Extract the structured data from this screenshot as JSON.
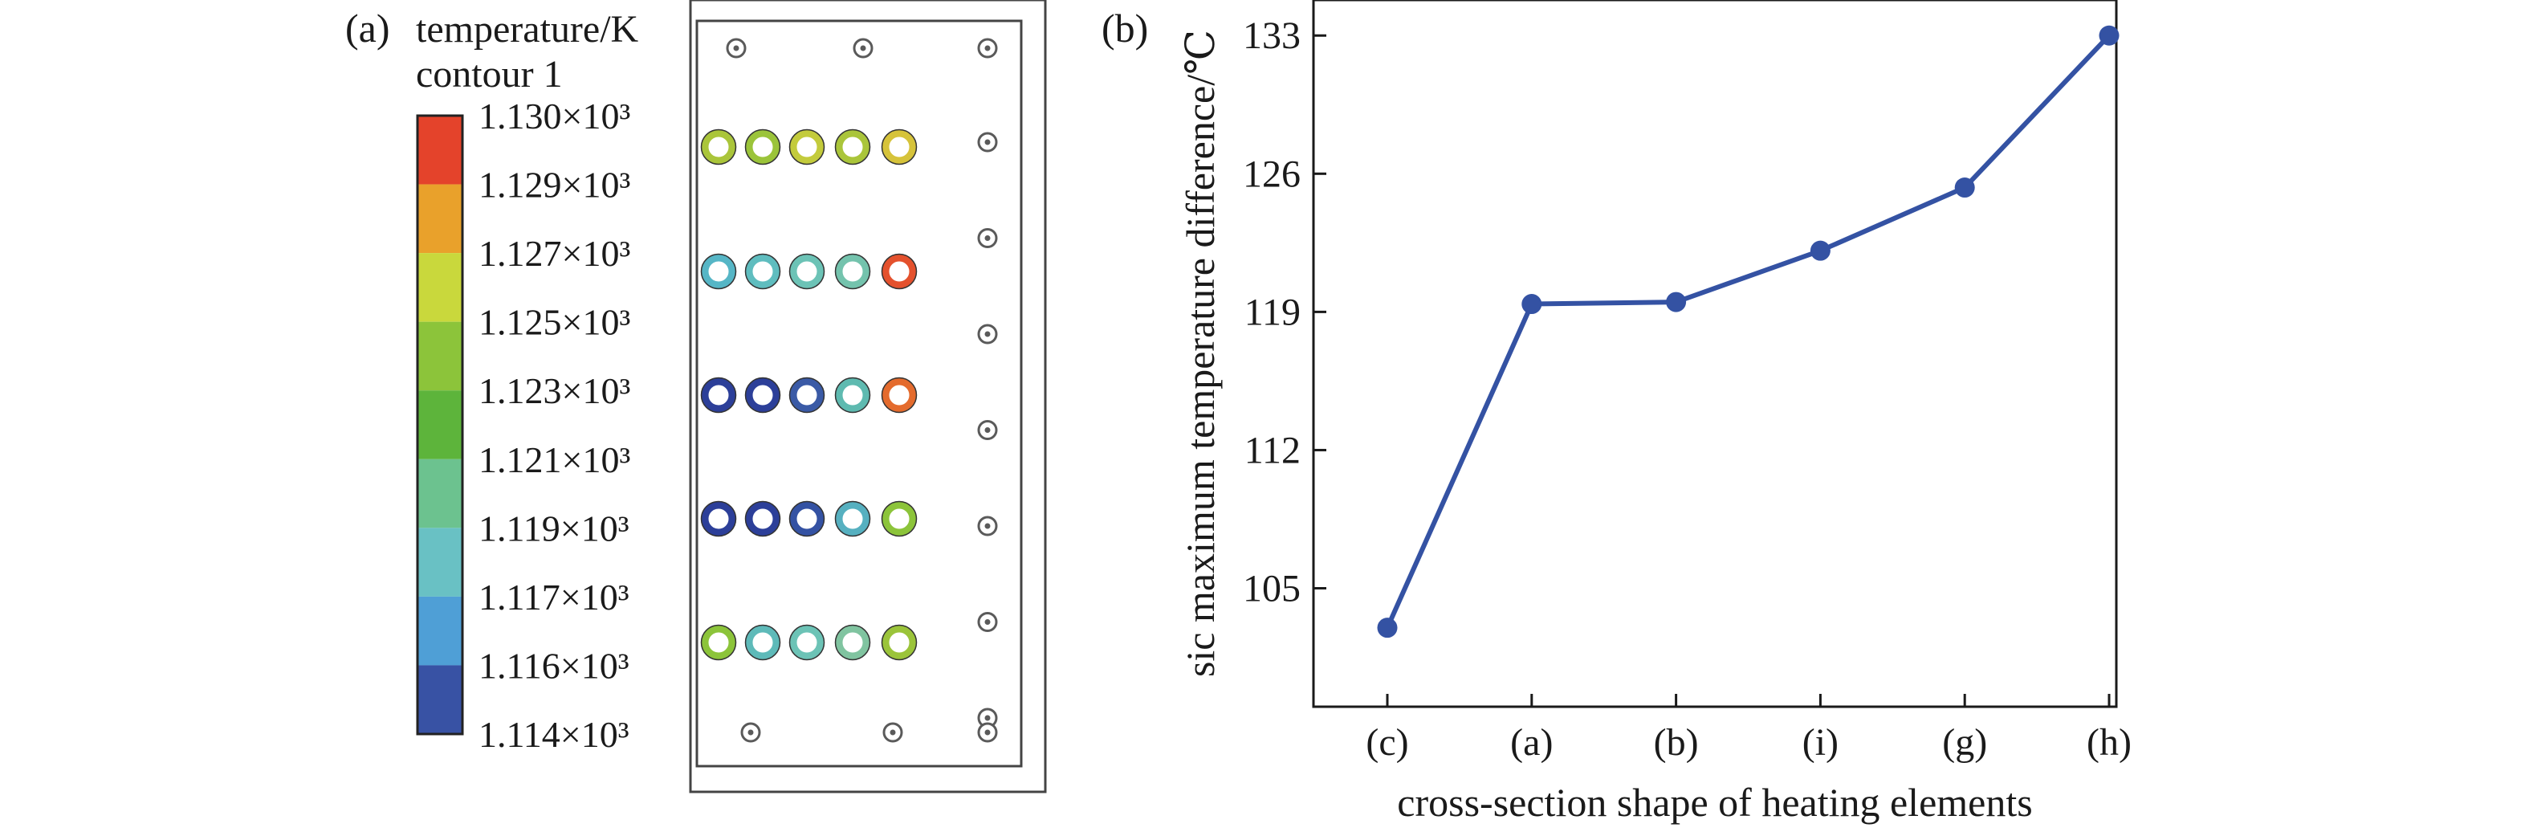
{
  "panel_a": {
    "label": "(a)",
    "colorbar": {
      "title_line1": "temperature/K",
      "title_line2": "contour 1",
      "labels": [
        "1.130×10³",
        "1.129×10³",
        "1.127×10³",
        "1.125×10³",
        "1.123×10³",
        "1.121×10³",
        "1.119×10³",
        "1.117×10³",
        "1.116×10³",
        "1.114×10³"
      ],
      "bands": [
        "#e4432b",
        "#e9a12b",
        "#c9d83c",
        "#8cc43a",
        "#5db43b",
        "#6cc28f",
        "#69c1c4",
        "#4f9fd6",
        "#3852a4"
      ]
    },
    "contour_map": {
      "heater_rows": [
        [
          "#aac53a",
          "#9bc43a",
          "#c3cb3c",
          "#aac53a",
          "#d6c33a"
        ],
        [
          "#56b6c6",
          "#5fbdbf",
          "#6cc3b6",
          "#74c3ad",
          "#e4512d"
        ],
        [
          "#2c3f99",
          "#2c3f99",
          "#3a5aa6",
          "#5ebab0",
          "#e46b2d"
        ],
        [
          "#2c3f99",
          "#2c3f99",
          "#3452a3",
          "#56b0c0",
          "#8cc43a"
        ],
        [
          "#8cc43a",
          "#5ebab9",
          "#6cc3b6",
          "#80c4a0",
          "#9bc43a"
        ]
      ],
      "sensor_column_count": 7,
      "sensor_top_count": 3,
      "sensor_bottom_count": 3,
      "sensor_color": "#5a5a5a"
    }
  },
  "panel_b": {
    "label": "(b)"
  },
  "chart_data": {
    "type": "line",
    "categories": [
      "(c)",
      "(a)",
      "(b)",
      "(i)",
      "(g)",
      "(h)"
    ],
    "series": [
      {
        "values": [
          103.0,
          119.4,
          119.5,
          122.1,
          125.3,
          133.0
        ],
        "color": "#3452a3"
      }
    ],
    "xlabel": "cross-section shape of heating elements",
    "ylabel": "sic maximum temperature difference/℃",
    "yticks": [
      105,
      112,
      119,
      126,
      133
    ],
    "ylim": [
      99.0,
      134.8
    ],
    "grid": false,
    "marker": "circle"
  }
}
